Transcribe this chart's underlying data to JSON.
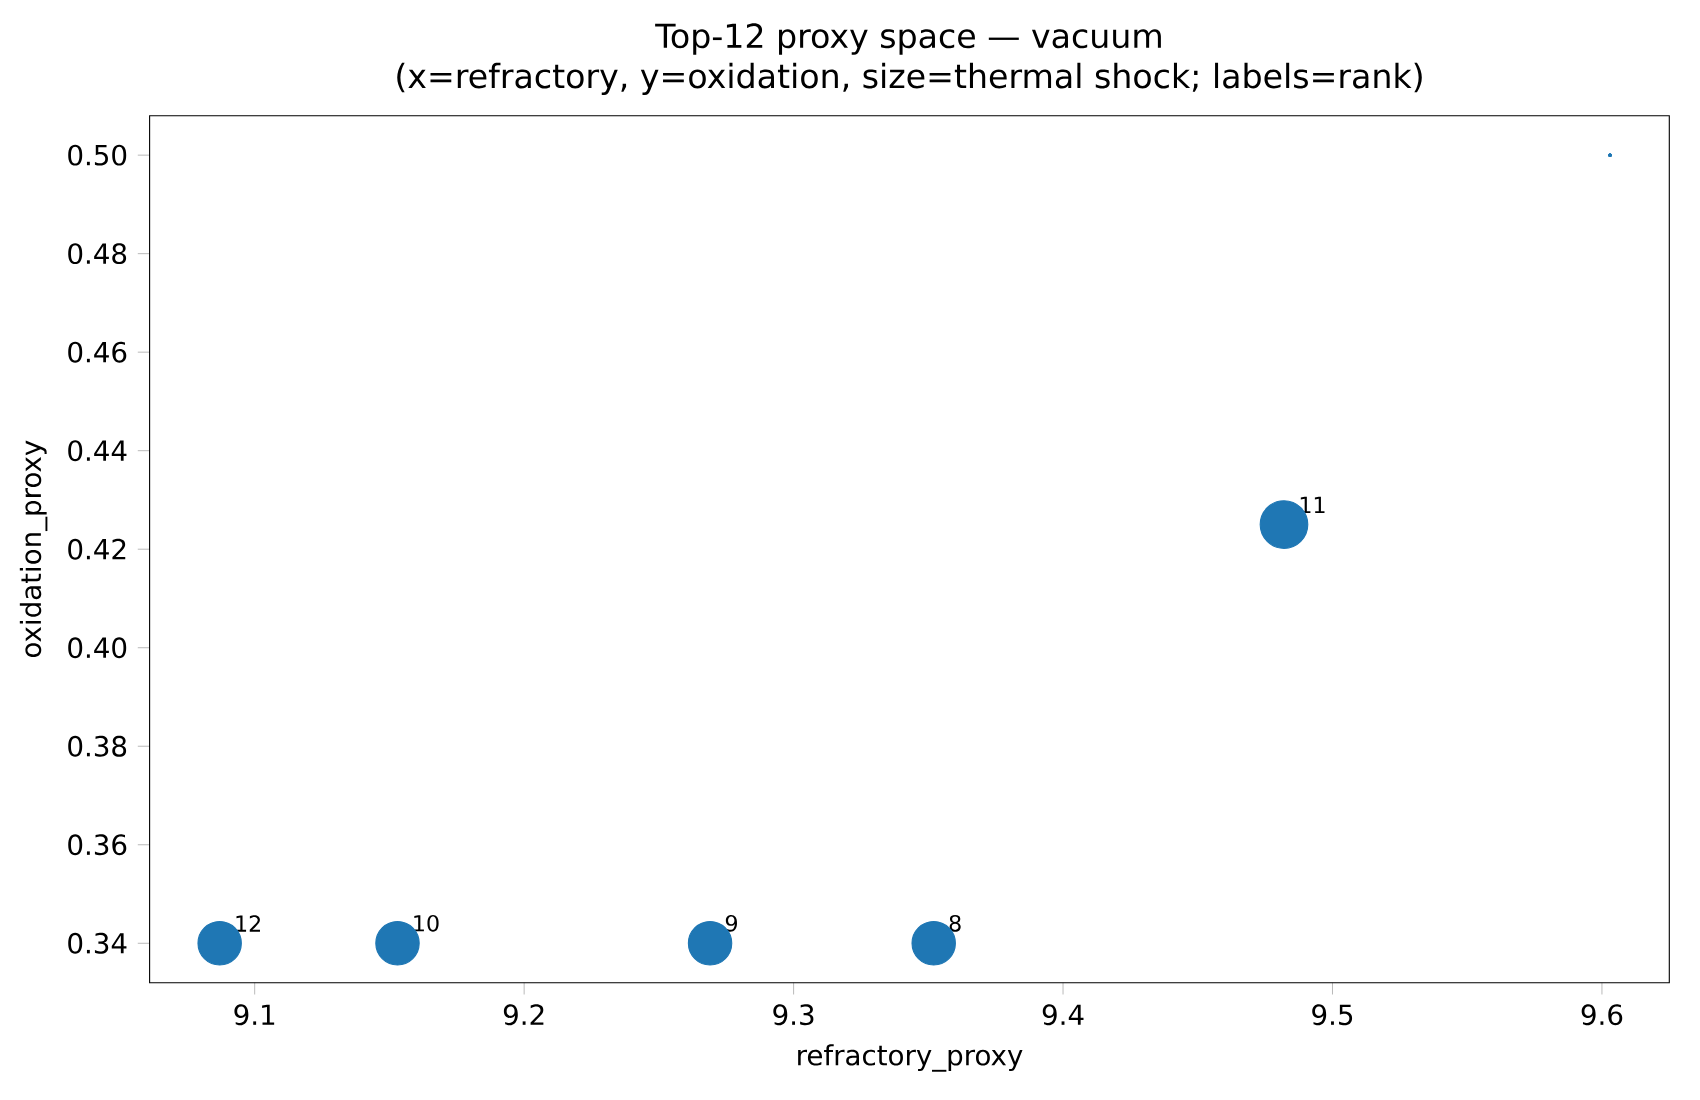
{
  "chart_data": {
    "type": "bubble",
    "title": "Top-12 proxy space — vacuum",
    "subtitle": "(x=refractory, y=oxidation, size=thermal shock; labels=rank)",
    "xlabel": "refractory_proxy",
    "ylabel": "oxidation_proxy",
    "x": [
      9.603,
      9.603,
      9.603,
      9.603,
      9.603,
      9.603,
      9.603,
      9.352,
      9.269,
      9.482,
      9.153,
      9.087
    ],
    "values": [
      0.5,
      0.5,
      0.5,
      0.5,
      0.5,
      0.5,
      0.5,
      0.34,
      0.34,
      0.425,
      0.34,
      0.34
    ],
    "sizes": [
      0.002,
      0.002,
      0.002,
      0.002,
      0.002,
      0.002,
      0.002,
      0.83,
      0.83,
      1,
      0.83,
      0.83
    ],
    "color": "#1f77b4",
    "annotations": [
      {
        "text": "8",
        "x": 9.352,
        "y": 0.34
      },
      {
        "text": "9",
        "x": 9.269,
        "y": 0.34
      },
      {
        "text": "11",
        "x": 9.482,
        "y": 0.425
      },
      {
        "text": "10",
        "x": 9.153,
        "y": 0.34
      },
      {
        "text": "12",
        "x": 9.087,
        "y": 0.34
      }
    ],
    "xlim": [
      9.061,
      9.625
    ],
    "ylim": [
      0.332,
      0.508
    ],
    "xticks": [
      {
        "value": 9.1,
        "label": "9.1"
      },
      {
        "value": 9.2,
        "label": "9.2"
      },
      {
        "value": 9.3,
        "label": "9.3"
      },
      {
        "value": 9.4,
        "label": "9.4"
      },
      {
        "value": 9.5,
        "label": "9.5"
      },
      {
        "value": 9.6,
        "label": "9.6"
      }
    ],
    "yticks": [
      {
        "value": 0.34,
        "label": "0.34"
      },
      {
        "value": 0.36,
        "label": "0.36"
      },
      {
        "value": 0.38,
        "label": "0.38"
      },
      {
        "value": 0.4,
        "label": "0.40"
      },
      {
        "value": 0.42,
        "label": "0.42"
      },
      {
        "value": 0.44,
        "label": "0.44"
      },
      {
        "value": 0.46,
        "label": "0.46"
      },
      {
        "value": 0.48,
        "label": "0.48"
      },
      {
        "value": 0.5,
        "label": "0.50"
      }
    ]
  }
}
